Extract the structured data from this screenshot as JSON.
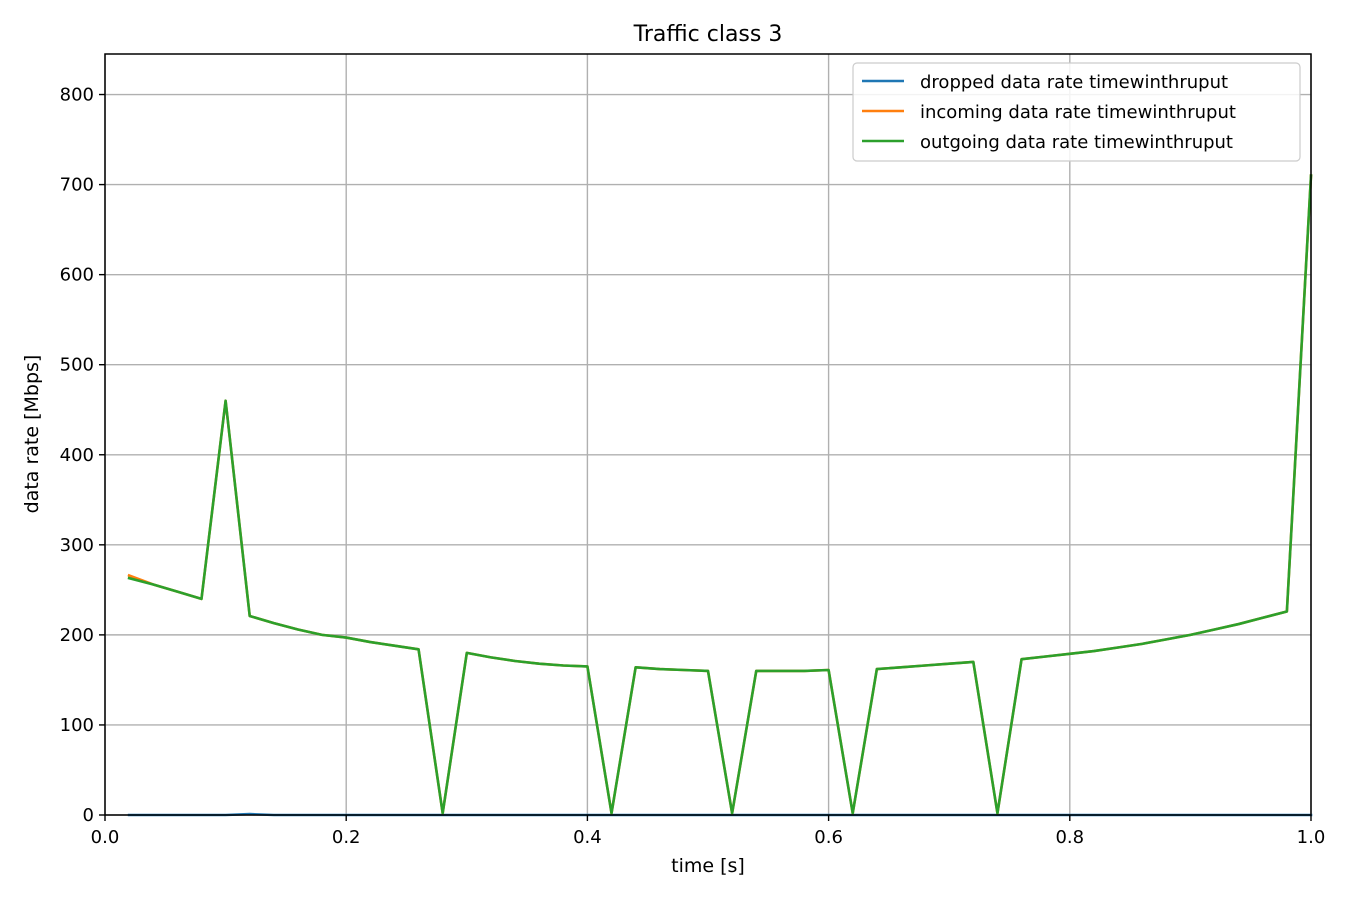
{
  "chart_data": {
    "type": "line",
    "title": "Traffic class 3",
    "xlabel": "time [s]",
    "ylabel": "data rate [Mbps]",
    "xlim": [
      0.0,
      1.0
    ],
    "ylim": [
      0,
      845
    ],
    "xticks": [
      0.0,
      0.2,
      0.4,
      0.6,
      0.8,
      1.0
    ],
    "xtick_labels": [
      "0.0",
      "0.2",
      "0.4",
      "0.6",
      "0.8",
      "1.0"
    ],
    "yticks": [
      0,
      100,
      200,
      300,
      400,
      500,
      600,
      700,
      800
    ],
    "ytick_labels": [
      "0",
      "100",
      "200",
      "300",
      "400",
      "500",
      "600",
      "700",
      "800"
    ],
    "grid": true,
    "legend_position": "top-right",
    "x": [
      0.02,
      0.04,
      0.06,
      0.08,
      0.1,
      0.12,
      0.14,
      0.16,
      0.18,
      0.2,
      0.22,
      0.24,
      0.26,
      0.28,
      0.3,
      0.32,
      0.34,
      0.36,
      0.38,
      0.4,
      0.42,
      0.44,
      0.46,
      0.48,
      0.5,
      0.52,
      0.54,
      0.56,
      0.58,
      0.6,
      0.62,
      0.64,
      0.66,
      0.68,
      0.7,
      0.72,
      0.74,
      0.76,
      0.78,
      0.8,
      0.82,
      0.84,
      0.86,
      0.88,
      0.9,
      0.92,
      0.94,
      0.96,
      0.98,
      1.0
    ],
    "series": [
      {
        "name": "dropped data rate timewinthruput",
        "color": "#1f77b4",
        "values": [
          0,
          0,
          0,
          0,
          0,
          1,
          0,
          0,
          0,
          0,
          0,
          0,
          0,
          0,
          0,
          0,
          0,
          0,
          0,
          0,
          0,
          0,
          0,
          0,
          0,
          0,
          0,
          0,
          0,
          0,
          0,
          0,
          0,
          0,
          0,
          0,
          0,
          0,
          0,
          0,
          0,
          0,
          0,
          0,
          0,
          0,
          0,
          0,
          0,
          0
        ]
      },
      {
        "name": "incoming data rate timewinthruput",
        "color": "#ff7f0e",
        "values": [
          266,
          256,
          248,
          240,
          460,
          221,
          213,
          206,
          200,
          197,
          192,
          188,
          184,
          2,
          180,
          175,
          171,
          168,
          166,
          165,
          2,
          164,
          162,
          161,
          160,
          2,
          160,
          160,
          160,
          161,
          2,
          162,
          164,
          166,
          168,
          170,
          2,
          173,
          176,
          179,
          182,
          186,
          190,
          195,
          200,
          206,
          212,
          219,
          226,
          710
        ]
      },
      {
        "name": "outgoing data rate timewinthruput",
        "color": "#2ca02c",
        "values": [
          263,
          256,
          248,
          240,
          460,
          221,
          213,
          206,
          200,
          197,
          192,
          188,
          184,
          2,
          180,
          175,
          171,
          168,
          166,
          165,
          2,
          164,
          162,
          161,
          160,
          2,
          160,
          160,
          160,
          161,
          2,
          162,
          164,
          166,
          168,
          170,
          2,
          173,
          176,
          179,
          182,
          186,
          190,
          195,
          200,
          206,
          212,
          219,
          226,
          710
        ]
      }
    ]
  }
}
